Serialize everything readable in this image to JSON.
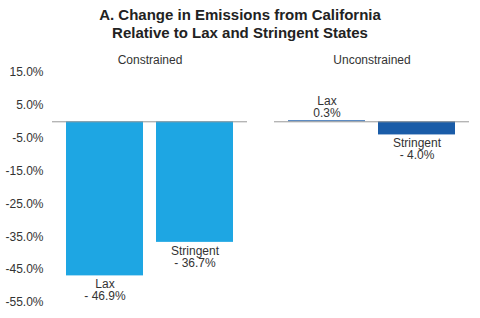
{
  "chart_data": {
    "type": "bar",
    "title": "A. Change in Emissions from California Relative to Lax and Stringent States",
    "categories": [
      "Constrained",
      "Unconstrained"
    ],
    "series": [
      {
        "name": "Lax",
        "values": [
          -46.9,
          0.3
        ],
        "value_labels": [
          "- 46.9%",
          "0.3%"
        ],
        "colors": [
          "#1ea6e3",
          "#1a5ca8"
        ]
      },
      {
        "name": "Stringent",
        "values": [
          -36.7,
          -4.0
        ],
        "value_labels": [
          "- 36.7%",
          "- 4.0%"
        ],
        "colors": [
          "#1ea6e3",
          "#1a5ca8"
        ]
      }
    ],
    "ylim": [
      -55,
      15
    ],
    "yticks": [
      {
        "value": 15,
        "label": "15.0%"
      },
      {
        "value": 5,
        "label": "5.0%"
      },
      {
        "value": -5,
        "label": "-5.0%"
      },
      {
        "value": -15,
        "label": "-15.0%"
      },
      {
        "value": -25,
        "label": "-25.0%"
      },
      {
        "value": -35,
        "label": "-35.0%"
      },
      {
        "value": -45,
        "label": "-45.0%"
      },
      {
        "value": -55,
        "label": "-55.0%"
      }
    ],
    "grid": false,
    "data_labels": true
  }
}
